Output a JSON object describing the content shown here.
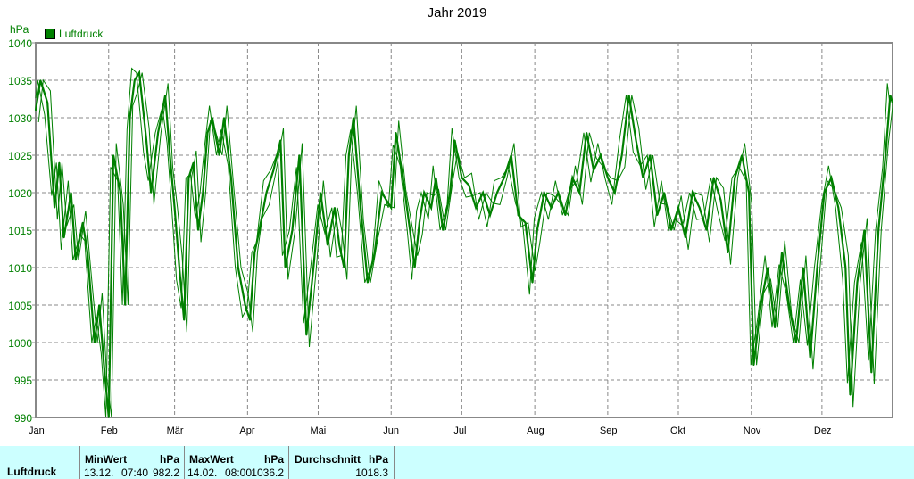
{
  "chart_data": {
    "type": "line",
    "title": "Jahr 2019",
    "ylabel": "hPa",
    "ylim": [
      990,
      1040
    ],
    "yticks": [
      "990",
      "995",
      "1000",
      "1005",
      "1010",
      "1015",
      "1020",
      "1025",
      "1030",
      "1035",
      "1040"
    ],
    "xticks": [
      "Jan",
      "Feb",
      "Mär",
      "Apr",
      "Mai",
      "Jun",
      "Jul",
      "Aug",
      "Sep",
      "Okt",
      "Nov",
      "Dez"
    ],
    "xlim_days": [
      1,
      365
    ],
    "grid": true,
    "legend": [
      "Luftdruck"
    ],
    "legend_position": "top-left",
    "color": "#008000",
    "series": [
      {
        "name": "Luftdruck",
        "points": [
          [
            1,
            1031
          ],
          [
            3,
            1035
          ],
          [
            6,
            1032
          ],
          [
            9,
            1018
          ],
          [
            11,
            1024
          ],
          [
            13,
            1014
          ],
          [
            16,
            1020
          ],
          [
            18,
            1011
          ],
          [
            21,
            1016
          ],
          [
            23,
            1012
          ],
          [
            26,
            1000
          ],
          [
            28,
            1005
          ],
          [
            30,
            997
          ],
          [
            32,
            990
          ],
          [
            34,
            1025
          ],
          [
            37,
            1020
          ],
          [
            39,
            1005
          ],
          [
            41,
            1030
          ],
          [
            43,
            1035
          ],
          [
            45,
            1036
          ],
          [
            48,
            1027
          ],
          [
            50,
            1020
          ],
          [
            53,
            1028
          ],
          [
            56,
            1033
          ],
          [
            58,
            1025
          ],
          [
            60,
            1018
          ],
          [
            62,
            1010
          ],
          [
            64,
            1003
          ],
          [
            66,
            1022
          ],
          [
            68,
            1024
          ],
          [
            70,
            1015
          ],
          [
            72,
            1020
          ],
          [
            74,
            1028
          ],
          [
            76,
            1030
          ],
          [
            79,
            1025
          ],
          [
            81,
            1030
          ],
          [
            84,
            1022
          ],
          [
            87,
            1010
          ],
          [
            90,
            1005
          ],
          [
            92,
            1003
          ],
          [
            94,
            1012
          ],
          [
            96,
            1015
          ],
          [
            99,
            1020
          ],
          [
            102,
            1023
          ],
          [
            105,
            1027
          ],
          [
            107,
            1010
          ],
          [
            110,
            1015
          ],
          [
            113,
            1025
          ],
          [
            116,
            1001
          ],
          [
            119,
            1010
          ],
          [
            122,
            1020
          ],
          [
            125,
            1013
          ],
          [
            128,
            1018
          ],
          [
            130,
            1013
          ],
          [
            132,
            1010
          ],
          [
            134,
            1025
          ],
          [
            136,
            1030
          ],
          [
            139,
            1018
          ],
          [
            142,
            1008
          ],
          [
            145,
            1012
          ],
          [
            148,
            1020
          ],
          [
            152,
            1018
          ],
          [
            154,
            1028
          ],
          [
            157,
            1022
          ],
          [
            160,
            1015
          ],
          [
            162,
            1010
          ],
          [
            164,
            1016
          ],
          [
            166,
            1020
          ],
          [
            169,
            1018
          ],
          [
            171,
            1022
          ],
          [
            174,
            1015
          ],
          [
            177,
            1020
          ],
          [
            179,
            1027
          ],
          [
            182,
            1022
          ],
          [
            185,
            1021
          ],
          [
            188,
            1018
          ],
          [
            191,
            1020
          ],
          [
            194,
            1017
          ],
          [
            197,
            1020
          ],
          [
            200,
            1022
          ],
          [
            203,
            1025
          ],
          [
            206,
            1017
          ],
          [
            209,
            1016
          ],
          [
            212,
            1008
          ],
          [
            214,
            1015
          ],
          [
            217,
            1020
          ],
          [
            220,
            1018
          ],
          [
            223,
            1020
          ],
          [
            226,
            1017
          ],
          [
            229,
            1022
          ],
          [
            232,
            1020
          ],
          [
            235,
            1028
          ],
          [
            238,
            1023
          ],
          [
            241,
            1025
          ],
          [
            244,
            1022
          ],
          [
            247,
            1020
          ],
          [
            250,
            1025
          ],
          [
            253,
            1033
          ],
          [
            256,
            1027
          ],
          [
            259,
            1022
          ],
          [
            262,
            1025
          ],
          [
            265,
            1017
          ],
          [
            268,
            1020
          ],
          [
            271,
            1015
          ],
          [
            274,
            1018
          ],
          [
            277,
            1014
          ],
          [
            280,
            1020
          ],
          [
            283,
            1018
          ],
          [
            286,
            1015
          ],
          [
            289,
            1022
          ],
          [
            292,
            1019
          ],
          [
            295,
            1012
          ],
          [
            298,
            1022
          ],
          [
            301,
            1025
          ],
          [
            304,
            1020
          ],
          [
            306,
            997
          ],
          [
            309,
            1005
          ],
          [
            312,
            1010
          ],
          [
            315,
            1002
          ],
          [
            318,
            1012
          ],
          [
            321,
            1005
          ],
          [
            324,
            1000
          ],
          [
            327,
            1010
          ],
          [
            330,
            998
          ],
          [
            333,
            1010
          ],
          [
            336,
            1020
          ],
          [
            339,
            1022
          ],
          [
            342,
            1018
          ],
          [
            345,
            1010
          ],
          [
            347,
            993
          ],
          [
            350,
            1008
          ],
          [
            353,
            1015
          ],
          [
            356,
            996
          ],
          [
            359,
            1015
          ],
          [
            362,
            1025
          ],
          [
            364,
            1033
          ],
          [
            365,
            1032
          ]
        ]
      }
    ]
  },
  "footer": {
    "row_label": "Luftdruck",
    "min": {
      "header": "MinWert",
      "unit": "hPa",
      "date": "13.12.",
      "time": "07:40",
      "value": "982.2"
    },
    "max": {
      "header": "MaxWert",
      "unit": "hPa",
      "date": "14.02.",
      "time": "08:00",
      "value": "1036.2"
    },
    "avg": {
      "header": "Durchschnitt",
      "unit": "hPa",
      "value": "1018.3"
    }
  }
}
